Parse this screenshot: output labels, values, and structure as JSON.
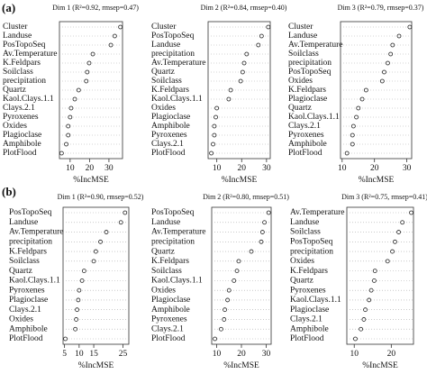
{
  "panel_labels": [
    "(a)",
    "(b)"
  ],
  "chart_data": [
    {
      "type": "dot",
      "title": "Dim 1 (R²=0.92, rmsep=0.47)",
      "x_label": "%IncMSE",
      "categories": [
        "Cluster",
        "Landuse",
        "PosTopoSeq",
        "Av.Temperature",
        "K.Feldpars",
        "Soilclass",
        "precipitation",
        "Quartz",
        "Kaol.Clays.1.1",
        "Clays.2.1",
        "Pyroxenes",
        "Oxides",
        "Plagioclase",
        "Amphibole",
        "PlotFlood"
      ],
      "values": [
        35.9,
        33,
        31,
        21.7,
        19.8,
        18.8,
        18.3,
        14.4,
        12.4,
        10.5,
        10,
        9,
        9,
        8,
        5.6
      ],
      "xlim": [
        4.5,
        37
      ],
      "xticks": [
        10,
        20,
        30
      ]
    },
    {
      "type": "dot",
      "title": "Dim 2 (R²=0.84, rmsep=0.40)",
      "x_label": "%IncMSE",
      "categories": [
        "Cluster",
        "PosTopoSeq",
        "Landuse",
        "precipitation",
        "Av.Temperature",
        "Quartz",
        "Soilclass",
        "K.Feldpars",
        "Kaol.Clays.1.1",
        "Oxides",
        "Plagioclase",
        "Amphibole",
        "Pyroxenes",
        "Clays.2.1",
        "PlotFlood"
      ],
      "values": [
        30.7,
        28,
        26.7,
        22,
        21,
        20.4,
        19.6,
        15.6,
        14.8,
        10,
        9.6,
        9,
        9,
        8.5,
        7.8
      ],
      "xlim": [
        6.5,
        31.5
      ],
      "xticks": [
        10,
        20,
        30
      ]
    },
    {
      "type": "dot",
      "title": "Dim 3 (R²=0.79, rmsep=0.37)",
      "x_label": "%IncMSE",
      "categories": [
        "Cluster",
        "Landuse",
        "Av.Temperature",
        "Soilclass",
        "precipitation",
        "PosTopoSeq",
        "Oxides",
        "K.Feldpars",
        "Plagioclase",
        "Quartz",
        "Kaol.Clays.1.1",
        "Clays.2.1",
        "Pyroxenes",
        "Amphibole",
        "PlotFlood"
      ],
      "values": [
        30.9,
        27.6,
        25.6,
        25,
        24.1,
        23,
        22.4,
        17.4,
        16.2,
        15,
        14.4,
        13.5,
        13.2,
        13.2,
        11.5
      ],
      "xlim": [
        9.5,
        31.5
      ],
      "xticks": [
        10,
        20,
        30
      ]
    },
    {
      "type": "dot",
      "title": "Dim 1 (R²=0.90, rmsep=0.52)",
      "x_label": "%IncMSE",
      "categories": [
        "PosTopoSeq",
        "Landuse",
        "Av.Temperature",
        "precipitation",
        "K.Feldpars",
        "Soilclass",
        "Quartz",
        "Kaol.Clays.1.1",
        "Pyroxenes",
        "Plagioclase",
        "Clays.2.1",
        "Oxides",
        "Amphibole",
        "PlotFlood"
      ],
      "values": [
        25.7,
        24.3,
        19.3,
        17.3,
        15.7,
        15,
        11.7,
        11,
        10,
        9.7,
        9.3,
        9,
        8.7,
        5.3
      ],
      "xlim": [
        4.5,
        27
      ],
      "xticks": [
        5,
        10,
        15,
        25
      ]
    },
    {
      "type": "dot",
      "title": "Dim 2 (R²=0.80, rmsep=0.51)",
      "x_label": "%IncMSE",
      "categories": [
        "PosTopoSeq",
        "Landuse",
        "Av.Temperature",
        "precipitation",
        "Quartz",
        "K.Feldpars",
        "Soilclass",
        "Kaol.Clays.1.1",
        "Oxides",
        "Plagioclase",
        "Amphibole",
        "Pyroxenes",
        "Clays.2.1",
        "PlotFlood"
      ],
      "values": [
        31,
        29.3,
        28.5,
        28,
        24,
        18.9,
        18.2,
        17,
        15,
        14.4,
        13.3,
        13,
        11.8,
        9.3
      ],
      "xlim": [
        8,
        32
      ],
      "xticks": [
        10,
        20,
        30
      ]
    },
    {
      "type": "dot",
      "title": "Dim 3 (R²=0.75, rmsep=0.41)",
      "x_label": "%IncMSE",
      "categories": [
        "Av.Temperature",
        "Landuse",
        "Soilclass",
        "PosTopoSeq",
        "precipitation",
        "Oxides",
        "K.Feldpars",
        "Quartz",
        "Pyroxenes",
        "Kaol.Clays.1.1",
        "Plagioclase",
        "Clays.2.1",
        "Amphibole",
        "PlotFlood"
      ],
      "values": [
        25.4,
        23,
        22,
        21,
        20.3,
        19,
        15.6,
        15.4,
        14.6,
        14,
        13,
        12.6,
        11.8,
        10.3
      ],
      "xlim": [
        8,
        26
      ],
      "xticks": [
        10,
        20
      ]
    }
  ]
}
